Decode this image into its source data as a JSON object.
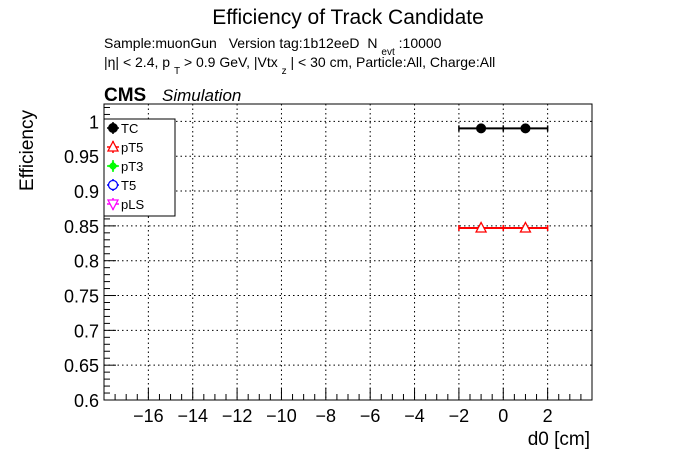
{
  "chart_data": {
    "type": "scatter",
    "title": "Efficiency of Track Candidate",
    "subtitle_line1": {
      "sample": "Sample:muonGun",
      "version": "Version tag:1b12eeD",
      "n_label": "N",
      "n_sub": "evt",
      "n_value": ":10000"
    },
    "subtitle_line2": {
      "eta": "|η| < 2.4, p",
      "pt_sub": "T",
      "pt_rest": " > 0.9 GeV, |Vtx",
      "vtx_sub": "z",
      "tail": "| < 30 cm, Particle:All, Charge:All"
    },
    "cms_label": "CMS",
    "simulation_label": "Simulation",
    "xlabel": "d0 [cm]",
    "ylabel": "Efficiency",
    "xlim": [
      -18,
      4
    ],
    "ylim": [
      0.6,
      1.025
    ],
    "xticks": [
      -16,
      -14,
      -12,
      -10,
      -8,
      -6,
      -4,
      -2,
      0,
      2
    ],
    "yticks": [
      0.6,
      0.65,
      0.7,
      0.75,
      0.8,
      0.85,
      0.9,
      0.95,
      1
    ],
    "grid": true,
    "legend_position": "top-left",
    "series": [
      {
        "name": "TC",
        "color": "#000000",
        "marker": "filled-circle",
        "points": [
          {
            "x": -1,
            "y": 0.99,
            "xerr": 1
          },
          {
            "x": 1,
            "y": 0.99,
            "xerr": 1
          }
        ]
      },
      {
        "name": "pT5",
        "color": "#ff0000",
        "marker": "open-triangle",
        "points": [
          {
            "x": -1,
            "y": 0.847,
            "xerr": 1
          },
          {
            "x": 1,
            "y": 0.847,
            "xerr": 1
          }
        ]
      },
      {
        "name": "pT3",
        "color": "#00ff00",
        "marker": "cross",
        "points": []
      },
      {
        "name": "T5",
        "color": "#0000ff",
        "marker": "open-circle",
        "points": []
      },
      {
        "name": "pLS",
        "color": "#ff00ff",
        "marker": "open-triangle-down",
        "points": []
      }
    ]
  }
}
